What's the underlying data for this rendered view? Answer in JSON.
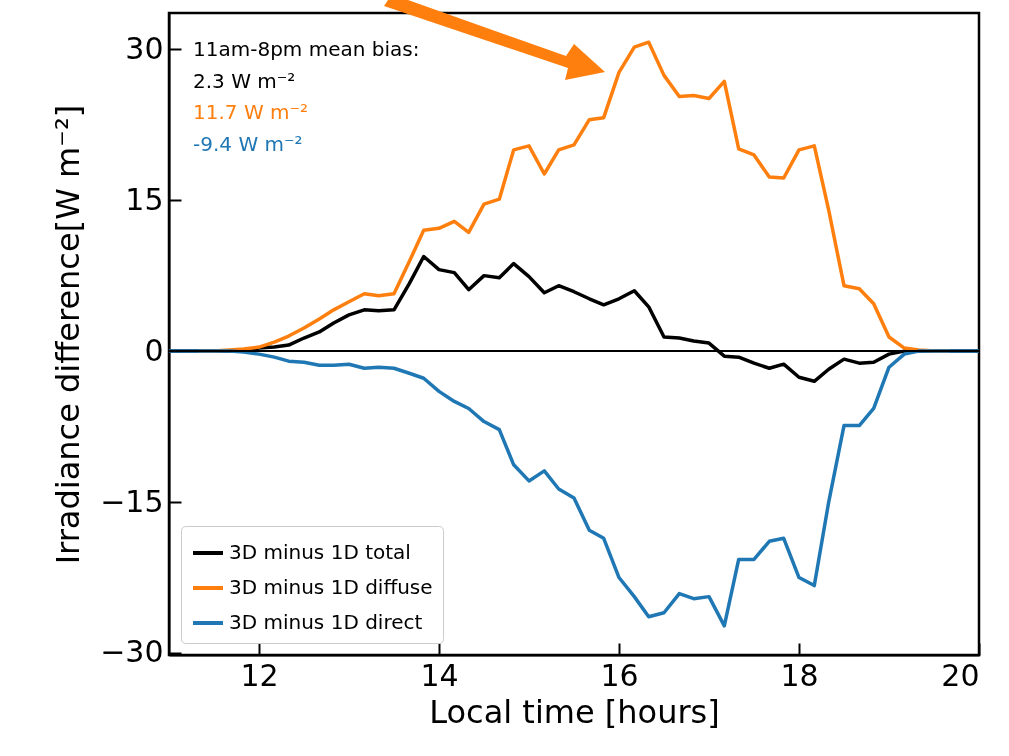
{
  "chart_data": {
    "type": "line",
    "xlabel": "Local time [hours]",
    "ylabel": "Irradiance difference[W m⁻²]",
    "x": [
      11,
      11.17,
      11.33,
      11.5,
      11.67,
      11.83,
      12,
      12.17,
      12.33,
      12.5,
      12.67,
      12.83,
      13,
      13.17,
      13.33,
      13.5,
      13.67,
      13.83,
      14,
      14.17,
      14.33,
      14.5,
      14.67,
      14.83,
      15,
      15.17,
      15.33,
      15.5,
      15.67,
      15.83,
      16,
      16.17,
      16.33,
      16.5,
      16.67,
      16.83,
      17,
      17.17,
      17.33,
      17.5,
      17.67,
      17.83,
      18,
      18.17,
      18.33,
      18.5,
      18.67,
      18.83,
      19,
      19.17,
      19.33,
      19.5,
      19.67,
      19.83,
      20
    ],
    "series": [
      {
        "name": "3D minus 1D total",
        "color": "#000000",
        "values": [
          0,
          0,
          0,
          0,
          0,
          0.1,
          0.3,
          0.4,
          0.6,
          1.3,
          1.9,
          2.8,
          3.6,
          4.1,
          4.0,
          4.1,
          6.7,
          9.4,
          8.1,
          7.8,
          6.1,
          7.5,
          7.3,
          8.7,
          7.4,
          5.8,
          6.5,
          5.9,
          5.2,
          4.6,
          5.2,
          6.0,
          4.4,
          1.4,
          1.3,
          1.0,
          0.8,
          -0.5,
          -0.6,
          -1.2,
          -1.7,
          -1.3,
          -2.6,
          -3.0,
          -1.8,
          -0.8,
          -1.2,
          -1.1,
          -0.3,
          0,
          0,
          0,
          0,
          0,
          0
        ]
      },
      {
        "name": "3D minus 1D diffuse",
        "color": "#ff7f0e",
        "values": [
          null,
          null,
          0,
          0,
          0.1,
          0.2,
          0.4,
          0.9,
          1.5,
          2.3,
          3.2,
          4.1,
          4.9,
          5.7,
          5.5,
          5.7,
          8.9,
          12.0,
          12.2,
          12.9,
          11.8,
          14.6,
          15.1,
          20.0,
          20.4,
          17.6,
          20.0,
          20.5,
          23.0,
          23.2,
          27.7,
          30.2,
          30.7,
          27.4,
          25.3,
          25.4,
          25.1,
          26.8,
          20.1,
          19.5,
          17.3,
          17.2,
          20.0,
          20.4,
          14.0,
          6.5,
          6.2,
          4.7,
          1.4,
          0.3,
          0.1,
          0,
          0,
          null,
          null
        ]
      },
      {
        "name": "3D minus 1D direct",
        "color": "#1f77b4",
        "values": [
          0,
          0,
          0,
          0,
          0,
          -0.1,
          -0.3,
          -0.6,
          -1.0,
          -1.1,
          -1.4,
          -1.4,
          -1.3,
          -1.7,
          -1.6,
          -1.7,
          -2.2,
          -2.7,
          -4.0,
          -5.0,
          -5.7,
          -7.0,
          -7.8,
          -11.3,
          -12.9,
          -11.9,
          -13.7,
          -14.6,
          -17.8,
          -18.6,
          -22.5,
          -24.4,
          -26.4,
          -26.0,
          -24.1,
          -24.6,
          -24.4,
          -27.3,
          -20.7,
          -20.7,
          -18.9,
          -18.6,
          -22.5,
          -23.3,
          -15.0,
          -7.4,
          -7.4,
          -5.7,
          -1.6,
          -0.3,
          0,
          0,
          0,
          0,
          0
        ]
      }
    ],
    "xlim": [
      11,
      20
    ],
    "xticks": [
      12,
      14,
      16,
      18,
      20
    ],
    "ylim": [
      -30.2,
      33.6
    ],
    "yticks": [
      {
        "value": -30,
        "label": "−30"
      },
      {
        "value": -15,
        "label": "−15"
      },
      0,
      15,
      30
    ],
    "ref_lines": [
      {
        "axis": "y",
        "value": 0,
        "color": "#000000"
      }
    ],
    "annotations": [
      "11am-8pm mean bias:",
      "2.3 W m⁻²",
      "11.7 W m⁻²",
      "-9.4 W m⁻²"
    ],
    "legend": "bottom left",
    "grid": false,
    "line_style": "solid"
  }
}
